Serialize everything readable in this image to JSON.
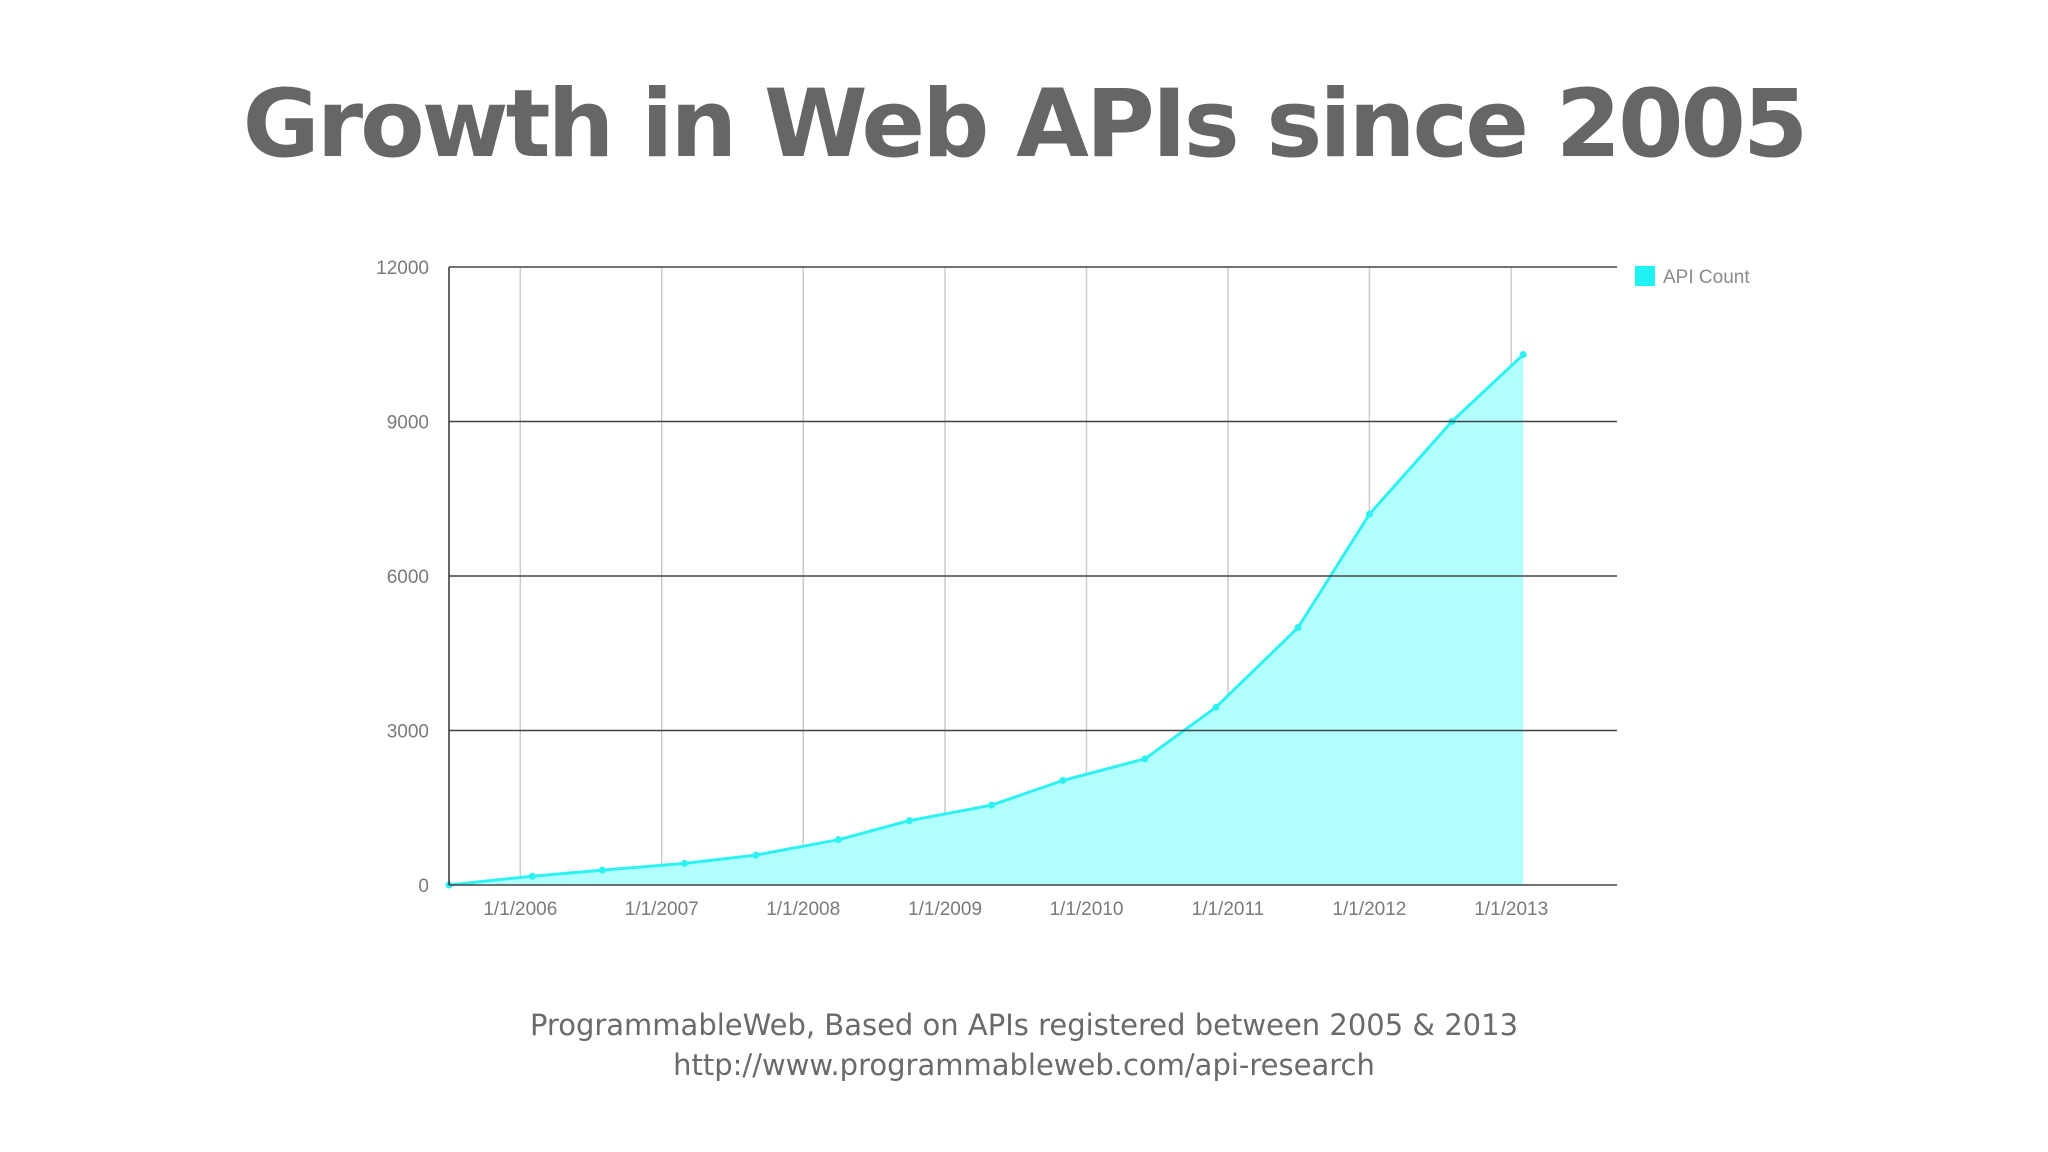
{
  "title": "Growth in Web APIs since 2005",
  "source": {
    "line1": "ProgrammableWeb, Based on APIs registered between 2005 & 2013",
    "line2": "http://www.programmableweb.com/api-research"
  },
  "colors": {
    "line": "#2ef2f2",
    "fill": "#b2ffff",
    "legend": "#1ff0f0",
    "title": "#666666"
  },
  "chart_data": {
    "type": "area",
    "title": "Growth in Web APIs since 2005",
    "xlabel": "",
    "ylabel": "",
    "x_start": "7/1/2005",
    "x_end": "10/1/2013",
    "ylim": [
      0,
      12000
    ],
    "yticks": [
      "0",
      "3000",
      "6000",
      "9000",
      "12000"
    ],
    "xticks": [
      "1/1/2006",
      "1/1/2007",
      "1/1/2008",
      "1/1/2009",
      "1/1/2010",
      "1/1/2011",
      "1/1/2012",
      "1/1/2013"
    ],
    "grid": true,
    "legend": "top-right",
    "series": [
      {
        "name": "API Count",
        "points": [
          {
            "x": "2005-07-01",
            "y": 0
          },
          {
            "x": "2006-02-01",
            "y": 170
          },
          {
            "x": "2006-08-01",
            "y": 290
          },
          {
            "x": "2007-03-01",
            "y": 420
          },
          {
            "x": "2007-09-01",
            "y": 580
          },
          {
            "x": "2008-04-01",
            "y": 880
          },
          {
            "x": "2008-10-01",
            "y": 1250
          },
          {
            "x": "2009-05-01",
            "y": 1550
          },
          {
            "x": "2009-11-01",
            "y": 2030
          },
          {
            "x": "2010-06-01",
            "y": 2450
          },
          {
            "x": "2010-12-01",
            "y": 3450
          },
          {
            "x": "2011-07-01",
            "y": 5000
          },
          {
            "x": "2012-01-01",
            "y": 7200
          },
          {
            "x": "2012-08-01",
            "y": 9000
          },
          {
            "x": "2013-02-01",
            "y": 10300
          }
        ]
      }
    ]
  }
}
